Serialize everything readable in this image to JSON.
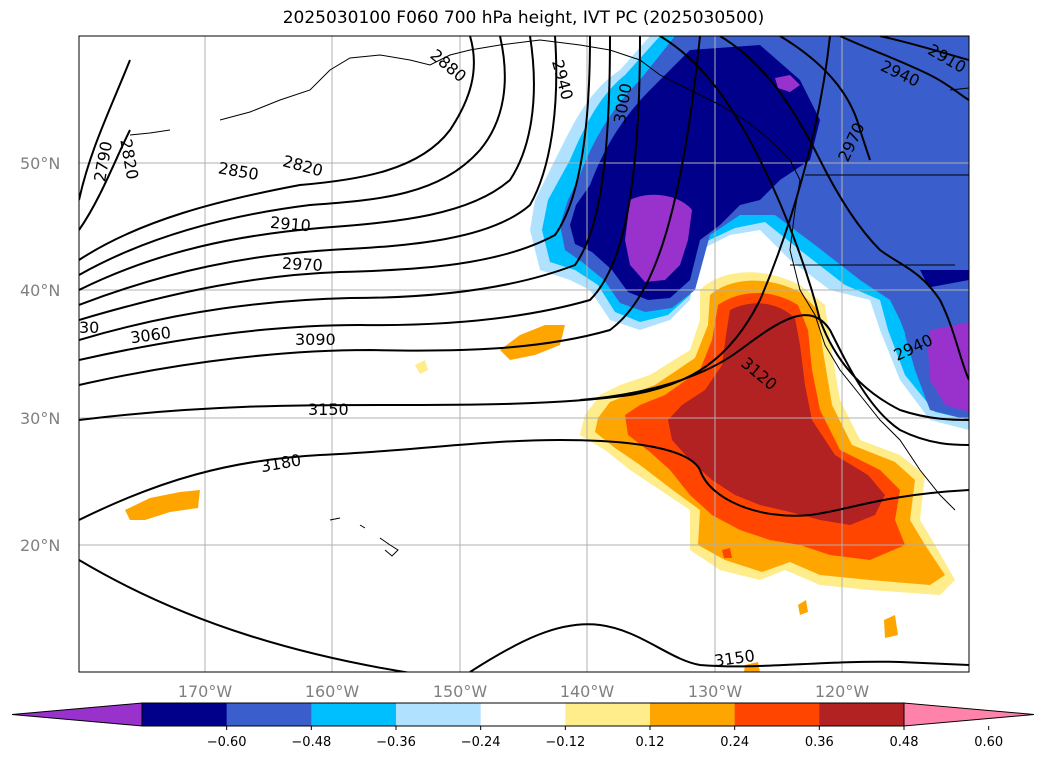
{
  "title": "2025030100 F060 700 hPa height, IVT PC (2025030500)",
  "lat_labels": [
    "50°N",
    "40°N",
    "30°N",
    "20°N"
  ],
  "lon_labels": [
    "170°W",
    "160°W",
    "150°W",
    "140°W",
    "130°W",
    "120°W"
  ],
  "colorbar": {
    "ticks": [
      "−0.60",
      "−0.48",
      "−0.36",
      "−0.24",
      "−0.12",
      "0.12",
      "0.24",
      "0.36",
      "0.48",
      "0.60"
    ],
    "colors": [
      "#9932cc",
      "#00008b",
      "#3a5fcd",
      "#00bfff",
      "#b0e2ff",
      "#ffffff",
      "#ffec8b",
      "#ffa500",
      "#ff4500",
      "#b22222",
      "#ff82ab"
    ]
  },
  "contour_labels": [
    "2790",
    "2820",
    "2850",
    "2820",
    "2880",
    "2940",
    "2910",
    "2940",
    "2970",
    "3000",
    "2910",
    "2970",
    "30",
    "3060",
    "3090",
    "3150",
    "3120",
    "3180",
    "2940",
    "3150"
  ]
}
